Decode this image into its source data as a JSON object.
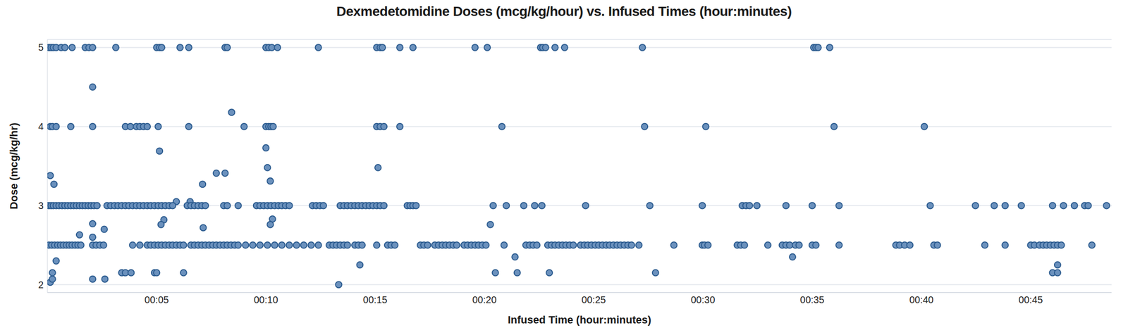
{
  "chart_data": {
    "type": "scatter",
    "title": "Dexmedetomidine Doses (mcg/kg/hour) vs. Infused Times (hour:minutes)",
    "x_label": "Infused Time (hour:minutes)",
    "y_label": "Dose (mcg/kg/hr)",
    "color": "#6b91bd",
    "marker": "circle",
    "grid": true,
    "xlim": [
      0,
      48.7
    ],
    "xticks": [
      {
        "value": 5,
        "label": "00:05"
      },
      {
        "value": 10,
        "label": "00:10"
      },
      {
        "value": 15,
        "label": "00:15"
      },
      {
        "value": 20,
        "label": "00:20"
      },
      {
        "value": 25,
        "label": "00:25"
      },
      {
        "value": 30,
        "label": "00:30"
      },
      {
        "value": 35,
        "label": "00:35"
      },
      {
        "value": 40,
        "label": "00:40"
      },
      {
        "value": 45,
        "label": "00:45"
      }
    ],
    "ylim": [
      1.9,
      5.1
    ],
    "yticks": [
      2,
      3,
      4,
      5
    ],
    "x": [
      0.07,
      0.17,
      0.27,
      0.4,
      0.63,
      0.8,
      1.13,
      1.73,
      1.9,
      2.07,
      3.13,
      5.0,
      5.13,
      5.23,
      6.07,
      6.47,
      8.13,
      8.23,
      10.0,
      10.13,
      10.27,
      10.53,
      12.4,
      15.07,
      15.23,
      15.33,
      16.13,
      16.73,
      19.57,
      20.13,
      22.57,
      22.67,
      22.8,
      23.23,
      23.67,
      27.23,
      35.07,
      35.17,
      35.27,
      35.8,
      0.13,
      0.23,
      0.4,
      1.07,
      2.07,
      3.57,
      3.8,
      4.07,
      4.23,
      4.4,
      4.57,
      5.07,
      6.47,
      9.0,
      10.0,
      10.13,
      10.23,
      10.33,
      15.07,
      15.23,
      15.4,
      16.13,
      20.8,
      27.33,
      30.13,
      36.0,
      40.13,
      2.07,
      8.43,
      5.13,
      10.0,
      10.07,
      10.2,
      15.13,
      0.13,
      0.3,
      7.73,
      8.13,
      7.1,
      5.9,
      6.53,
      7.13,
      5.33,
      5.2,
      2.07,
      2.07,
      2.6,
      1.47,
      10.3,
      10.2,
      20.27,
      21.4,
      34.1,
      14.3,
      46.23,
      0.4,
      0.23,
      3.4,
      3.57,
      3.83,
      4.9,
      5.0,
      6.23,
      20.5,
      21.5,
      22.97,
      27.83,
      46.0,
      46.23,
      0.13,
      0.23,
      2.07,
      2.63,
      13.33,
      0.07,
      0.17,
      0.27,
      0.4,
      0.53,
      0.67,
      0.8,
      0.93,
      1.07,
      1.2,
      1.33,
      1.47,
      1.6,
      1.73,
      1.87,
      2.0,
      2.13,
      2.27,
      2.73,
      2.9,
      3.07,
      3.23,
      3.4,
      3.57,
      3.73,
      3.9,
      4.07,
      4.23,
      4.4,
      4.57,
      4.73,
      4.9,
      5.07,
      5.23,
      5.4,
      5.57,
      5.73,
      6.4,
      6.57,
      6.73,
      6.9,
      7.07,
      7.23,
      8.07,
      8.23,
      8.73,
      9.57,
      9.73,
      9.9,
      10.07,
      10.23,
      10.4,
      10.57,
      10.73,
      10.9,
      11.07,
      12.13,
      12.3,
      12.47,
      12.63,
      13.4,
      13.57,
      13.73,
      13.9,
      14.07,
      14.23,
      14.4,
      14.57,
      14.73,
      14.9,
      15.07,
      15.23,
      15.4,
      16.47,
      16.6,
      16.73,
      16.87,
      20.4,
      21.0,
      21.8,
      22.3,
      22.63,
      24.63,
      27.57,
      29.97,
      31.8,
      31.97,
      32.13,
      32.47,
      33.8,
      35.0,
      36.23,
      40.4,
      42.47,
      43.33,
      43.83,
      44.57,
      46.0,
      46.5,
      47.0,
      47.47,
      47.63,
      48.47,
      0.07,
      0.2,
      0.33,
      0.47,
      0.6,
      0.73,
      0.87,
      1.0,
      1.13,
      1.27,
      1.4,
      1.53,
      2.07,
      2.23,
      2.4,
      2.57,
      3.9,
      4.23,
      4.57,
      4.73,
      4.9,
      5.07,
      5.23,
      5.4,
      5.57,
      5.73,
      5.9,
      6.07,
      6.23,
      6.57,
      6.73,
      6.9,
      7.07,
      7.23,
      7.4,
      7.57,
      7.73,
      7.9,
      8.07,
      8.23,
      8.4,
      8.57,
      8.73,
      9.07,
      9.4,
      9.73,
      10.07,
      10.4,
      10.73,
      11.07,
      11.4,
      11.73,
      12.07,
      12.4,
      12.9,
      13.07,
      13.23,
      13.4,
      13.57,
      13.73,
      14.07,
      14.23,
      14.4,
      15.07,
      15.57,
      15.73,
      15.9,
      17.07,
      17.23,
      17.4,
      17.73,
      17.9,
      18.07,
      18.23,
      18.4,
      18.57,
      18.73,
      19.07,
      19.23,
      19.4,
      19.57,
      19.73,
      19.9,
      20.07,
      20.9,
      21.9,
      22.07,
      22.23,
      22.4,
      22.9,
      23.07,
      23.23,
      23.4,
      23.57,
      23.73,
      23.9,
      24.07,
      24.4,
      24.57,
      24.73,
      24.9,
      25.07,
      25.23,
      25.4,
      25.57,
      25.73,
      25.9,
      26.07,
      26.23,
      26.4,
      26.57,
      26.73,
      27.07,
      28.67,
      29.97,
      30.07,
      30.23,
      31.57,
      31.73,
      31.9,
      32.97,
      33.63,
      33.8,
      33.97,
      34.23,
      34.4,
      35.0,
      35.17,
      36.23,
      38.83,
      39.0,
      39.23,
      39.47,
      40.57,
      40.73,
      42.9,
      43.83,
      45.0,
      45.17,
      45.4,
      45.57,
      45.73,
      45.9,
      46.07,
      46.23,
      46.4,
      47.8
    ],
    "values": [
      5,
      5,
      5,
      5,
      5,
      5,
      5,
      5,
      5,
      5,
      5,
      5,
      5,
      5,
      5,
      5,
      5,
      5,
      5,
      5,
      5,
      5,
      5,
      5,
      5,
      5,
      5,
      5,
      5,
      5,
      5,
      5,
      5,
      5,
      5,
      5,
      5,
      5,
      5,
      5,
      4,
      4,
      4,
      4,
      4,
      4,
      4,
      4,
      4,
      4,
      4,
      4,
      4,
      4,
      4,
      4,
      4,
      4,
      4,
      4,
      4,
      4,
      4,
      4,
      4,
      4,
      4,
      4.5,
      4.18,
      3.69,
      3.73,
      3.48,
      3.31,
      3.48,
      3.38,
      3.27,
      3.41,
      3.41,
      3.27,
      3.05,
      3.05,
      2.72,
      2.82,
      2.76,
      2.77,
      2.6,
      2.7,
      2.63,
      2.83,
      2.76,
      2.76,
      2.35,
      2.35,
      2.25,
      2.25,
      2.3,
      2.15,
      2.15,
      2.15,
      2.15,
      2.15,
      2.15,
      2.15,
      2.15,
      2.15,
      2.15,
      2.15,
      2.15,
      2.15,
      2.03,
      2.07,
      2.07,
      2.07,
      2.0,
      3,
      3,
      3,
      3,
      3,
      3,
      3,
      3,
      3,
      3,
      3,
      3,
      3,
      3,
      3,
      3,
      3,
      3,
      3,
      3,
      3,
      3,
      3,
      3,
      3,
      3,
      3,
      3,
      3,
      3,
      3,
      3,
      3,
      3,
      3,
      3,
      3,
      3,
      3,
      3,
      3,
      3,
      3,
      3,
      3,
      3,
      3,
      3,
      3,
      3,
      3,
      3,
      3,
      3,
      3,
      3,
      3,
      3,
      3,
      3,
      3,
      3,
      3,
      3,
      3,
      3,
      3,
      3,
      3,
      3,
      3,
      3,
      3,
      3,
      3,
      3,
      3,
      3,
      3,
      3,
      3,
      3,
      3,
      3,
      3,
      3,
      3,
      3,
      3,
      3,
      3,
      3,
      3,
      3,
      3,
      3,
      3,
      3,
      3,
      3,
      3,
      3,
      3,
      2.5,
      2.5,
      2.5,
      2.5,
      2.5,
      2.5,
      2.5,
      2.5,
      2.5,
      2.5,
      2.5,
      2.5,
      2.5,
      2.5,
      2.5,
      2.5,
      2.5,
      2.5,
      2.5,
      2.5,
      2.5,
      2.5,
      2.5,
      2.5,
      2.5,
      2.5,
      2.5,
      2.5,
      2.5,
      2.5,
      2.5,
      2.5,
      2.5,
      2.5,
      2.5,
      2.5,
      2.5,
      2.5,
      2.5,
      2.5,
      2.5,
      2.5,
      2.5,
      2.5,
      2.5,
      2.5,
      2.5,
      2.5,
      2.5,
      2.5,
      2.5,
      2.5,
      2.5,
      2.5,
      2.5,
      2.5,
      2.5,
      2.5,
      2.5,
      2.5,
      2.5,
      2.5,
      2.5,
      2.5,
      2.5,
      2.5,
      2.5,
      2.5,
      2.5,
      2.5,
      2.5,
      2.5,
      2.5,
      2.5,
      2.5,
      2.5,
      2.5,
      2.5,
      2.5,
      2.5,
      2.5,
      2.5,
      2.5,
      2.5,
      2.5,
      2.5,
      2.5,
      2.5,
      2.5,
      2.5,
      2.5,
      2.5,
      2.5,
      2.5,
      2.5,
      2.5,
      2.5,
      2.5,
      2.5,
      2.5,
      2.5,
      2.5,
      2.5,
      2.5,
      2.5,
      2.5,
      2.5,
      2.5,
      2.5,
      2.5,
      2.5,
      2.5,
      2.5,
      2.5,
      2.5,
      2.5,
      2.5,
      2.5,
      2.5,
      2.5,
      2.5,
      2.5,
      2.5,
      2.5,
      2.5,
      2.5,
      2.5,
      2.5,
      2.5,
      2.5,
      2.5,
      2.5,
      2.5,
      2.5,
      2.5,
      2.5,
      2.5,
      2.5,
      2.5,
      2.5,
      2.5,
      2.5,
      2.5,
      2.5,
      2.5,
      2.5,
      2.5
    ]
  }
}
